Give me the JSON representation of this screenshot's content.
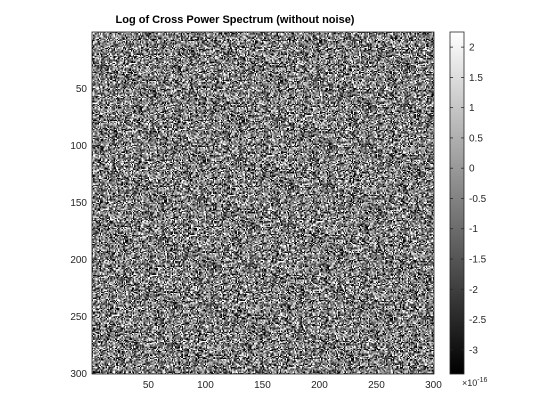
{
  "chart_data": {
    "type": "heatmap",
    "title": "Log of Cross Power Spectrum (without noise)",
    "xlabel": "",
    "ylabel": "",
    "grid": false,
    "colormap": "gray",
    "image_rows": 300,
    "image_cols": 300,
    "xlim": [
      1,
      300
    ],
    "ylim": [
      300,
      1
    ],
    "x_ticks": [
      50,
      100,
      150,
      200,
      250,
      300
    ],
    "y_ticks": [
      50,
      100,
      150,
      200,
      250,
      300
    ],
    "colorbar": {
      "location": "right",
      "exponent_label": "×10",
      "exponent_value": "-16",
      "clim": [
        -3.4,
        2.25
      ],
      "ticks": [
        {
          "value": 2,
          "label": "2"
        },
        {
          "value": 1.5,
          "label": "1.5"
        },
        {
          "value": 1,
          "label": "1"
        },
        {
          "value": 0.5,
          "label": "0.5"
        },
        {
          "value": 0,
          "label": "0"
        },
        {
          "value": -0.5,
          "label": "-0.5"
        },
        {
          "value": -1,
          "label": "-1"
        },
        {
          "value": -1.5,
          "label": "-1.5"
        },
        {
          "value": -2,
          "label": "-2"
        },
        {
          "value": -2.5,
          "label": "-2.5"
        },
        {
          "value": -3,
          "label": "-3"
        }
      ]
    },
    "texture": "dense random noise, values spanning the full colour range"
  }
}
